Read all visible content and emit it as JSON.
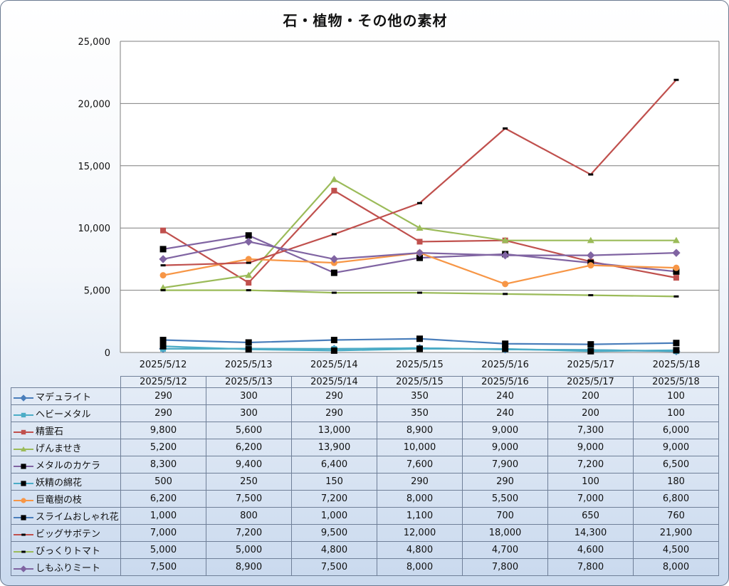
{
  "chart_data": {
    "type": "line",
    "title": "石・植物・その他の素材",
    "categories": [
      "2025/5/12",
      "2025/5/13",
      "2025/5/14",
      "2025/5/15",
      "2025/5/16",
      "2025/5/17",
      "2025/5/18"
    ],
    "ylim": [
      0,
      25000
    ],
    "yticks": [
      "0",
      "5,000",
      "10,000",
      "15,000",
      "20,000",
      "25,000"
    ],
    "ytick_values": [
      0,
      5000,
      10000,
      15000,
      20000,
      25000
    ],
    "grid": true,
    "legend": "data-table-below",
    "series": [
      {
        "name": "マデュライト",
        "color": "#4a7ebb",
        "marker": "diamond",
        "values": [
          290,
          300,
          290,
          350,
          240,
          200,
          100
        ],
        "labels": [
          "290",
          "300",
          "290",
          "350",
          "240",
          "200",
          "100"
        ]
      },
      {
        "name": "ヘビーメタル",
        "color": "#4bacc6",
        "marker": "square",
        "values": [
          290,
          300,
          290,
          350,
          240,
          200,
          100
        ],
        "labels": [
          "290",
          "300",
          "290",
          "350",
          "240",
          "200",
          "100"
        ]
      },
      {
        "name": "精霊石",
        "color": "#c0504d",
        "marker": "square",
        "values": [
          9800,
          5600,
          13000,
          8900,
          9000,
          7300,
          6000
        ],
        "labels": [
          "9,800",
          "5,600",
          "13,000",
          "8,900",
          "9,000",
          "7,300",
          "6,000"
        ]
      },
      {
        "name": "げんませき",
        "color": "#9bbb59",
        "marker": "triangle",
        "values": [
          5200,
          6200,
          13900,
          10000,
          9000,
          9000,
          9000
        ],
        "labels": [
          "5,200",
          "6,200",
          "13,900",
          "10,000",
          "9,000",
          "9,000",
          "9,000"
        ]
      },
      {
        "name": "メタルのカケラ",
        "color": "#8064a2",
        "marker": "square-black",
        "values": [
          8300,
          9400,
          6400,
          7600,
          7900,
          7200,
          6500
        ],
        "labels": [
          "8,300",
          "9,400",
          "6,400",
          "7,600",
          "7,900",
          "7,200",
          "6,500"
        ]
      },
      {
        "name": "妖精の綿花",
        "color": "#4bacc6",
        "marker": "square-black",
        "values": [
          500,
          250,
          150,
          290,
          290,
          100,
          180
        ],
        "labels": [
          "500",
          "250",
          "150",
          "290",
          "290",
          "100",
          "180"
        ]
      },
      {
        "name": "巨竜樹の枝",
        "color": "#f79646",
        "marker": "circle",
        "values": [
          6200,
          7500,
          7200,
          8000,
          5500,
          7000,
          6800
        ],
        "labels": [
          "6,200",
          "7,500",
          "7,200",
          "8,000",
          "5,500",
          "7,000",
          "6,800"
        ]
      },
      {
        "name": "スライムおしゃれ花",
        "color": "#4a7ebb",
        "marker": "square-black",
        "values": [
          1000,
          800,
          1000,
          1100,
          700,
          650,
          760
        ],
        "labels": [
          "1,000",
          "800",
          "1,000",
          "1,100",
          "700",
          "650",
          "760"
        ]
      },
      {
        "name": "ビッグサボテン",
        "color": "#c0504d",
        "marker": "dash",
        "values": [
          7000,
          7200,
          9500,
          12000,
          18000,
          14300,
          21900
        ],
        "labels": [
          "7,000",
          "7,200",
          "9,500",
          "12,000",
          "18,000",
          "14,300",
          "21,900"
        ]
      },
      {
        "name": "びっくりトマト",
        "color": "#9bbb59",
        "marker": "dash",
        "values": [
          5000,
          5000,
          4800,
          4800,
          4700,
          4600,
          4500
        ],
        "labels": [
          "5,000",
          "5,000",
          "4,800",
          "4,800",
          "4,700",
          "4,600",
          "4,500"
        ]
      },
      {
        "name": "しもふりミート",
        "color": "#8064a2",
        "marker": "diamond",
        "values": [
          7500,
          8900,
          7500,
          8000,
          7800,
          7800,
          8000
        ],
        "labels": [
          "7,500",
          "8,900",
          "7,500",
          "8,000",
          "7,800",
          "7,800",
          "8,000"
        ]
      }
    ]
  }
}
